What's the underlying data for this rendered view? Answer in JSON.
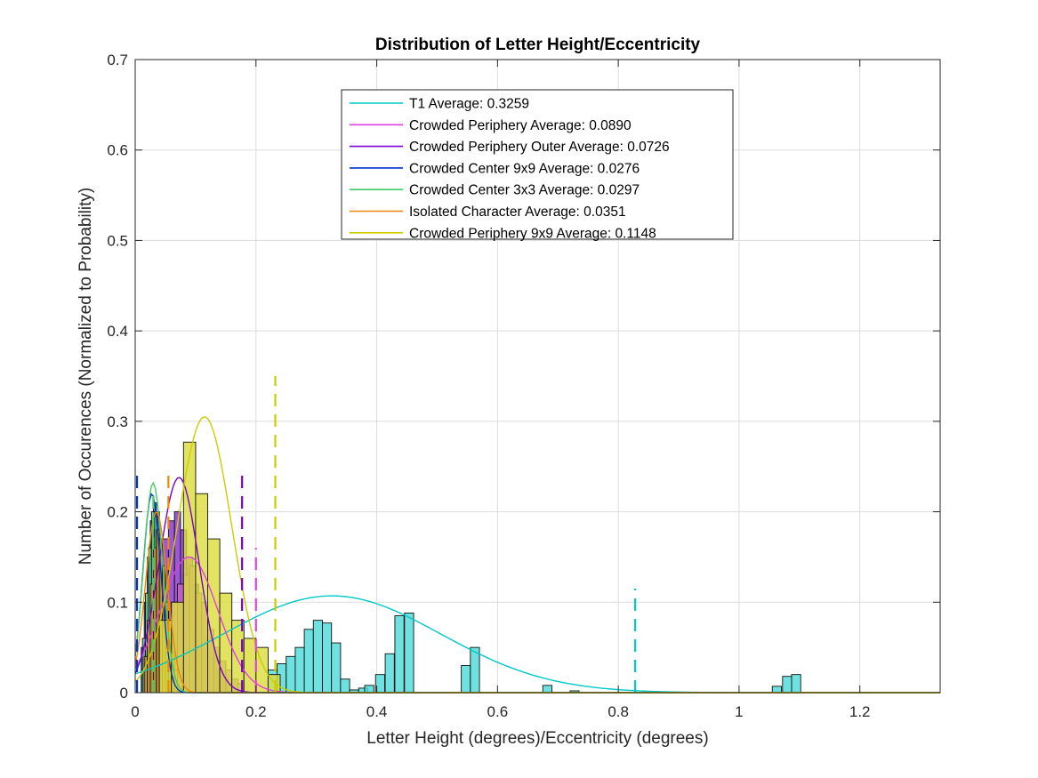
{
  "chart_data": {
    "type": "bar",
    "title": "Distribution of Letter Height/Eccentricity",
    "xlabel": "Letter Height (degrees)/Eccentricity (degrees)",
    "ylabel": "Number of Occurences (Normalized to Probability)",
    "xlim": [
      0,
      1.333
    ],
    "ylim": [
      0,
      0.7
    ],
    "x_ticks": [
      "0",
      "0.2",
      "0.4",
      "0.6",
      "0.8",
      "1",
      "1.2"
    ],
    "y_ticks": [
      "0",
      "0.1",
      "0.2",
      "0.3",
      "0.4",
      "0.5",
      "0.6",
      "0.7"
    ],
    "grid": true,
    "legend_position": "top-center",
    "series": [
      {
        "name": "T1 Average: 0.3259",
        "color": "#00c8c8",
        "bar_fill": "#4fdada",
        "mean": 0.3259,
        "mean_line_x": 0.828,
        "mean_line_height": 0.115,
        "fit_peak": 0.107,
        "fit_sigma": 0.18,
        "bin_width": 0.0151,
        "bins": [
          [
            0.22,
            0.025
          ],
          [
            0.235,
            0.032
          ],
          [
            0.25,
            0.04
          ],
          [
            0.265,
            0.05
          ],
          [
            0.28,
            0.07
          ],
          [
            0.295,
            0.08
          ],
          [
            0.31,
            0.077
          ],
          [
            0.325,
            0.055
          ],
          [
            0.34,
            0.015
          ],
          [
            0.355,
            0.003
          ],
          [
            0.37,
            0.005
          ],
          [
            0.38,
            0.008
          ],
          [
            0.398,
            0.02
          ],
          [
            0.414,
            0.043
          ],
          [
            0.43,
            0.085
          ],
          [
            0.446,
            0.088
          ],
          [
            0.54,
            0.03
          ],
          [
            0.555,
            0.05
          ],
          [
            0.675,
            0.008
          ],
          [
            0.72,
            0.002
          ],
          [
            1.055,
            0.007
          ],
          [
            1.072,
            0.018
          ],
          [
            1.087,
            0.02
          ]
        ]
      },
      {
        "name": "Crowded Periphery Average: 0.0890",
        "color": "#e040e0",
        "bar_fill": "#cc66cc",
        "mean": 0.089,
        "mean_line_x": 0.2,
        "mean_line_height": 0.16,
        "fit_peak": 0.15,
        "fit_sigma": 0.048,
        "bin_width": 0.0101,
        "bins": [
          [
            0.04,
            0.05
          ],
          [
            0.05,
            0.08
          ],
          [
            0.06,
            0.1
          ],
          [
            0.07,
            0.12
          ],
          [
            0.08,
            0.13
          ],
          [
            0.09,
            0.14
          ],
          [
            0.1,
            0.11
          ],
          [
            0.11,
            0.1
          ],
          [
            0.12,
            0.07
          ],
          [
            0.13,
            0.05
          ],
          [
            0.14,
            0.035
          ],
          [
            0.15,
            0.025
          ],
          [
            0.16,
            0.015
          ],
          [
            0.17,
            0.01
          ]
        ]
      },
      {
        "name": "Crowded Periphery Outer Average: 0.0726",
        "color": "#7a00d4",
        "bar_fill": "#8833cc",
        "mean": 0.0726,
        "mean_line_x": 0.177,
        "mean_line_height": 0.245,
        "fit_peak": 0.238,
        "fit_sigma": 0.033,
        "bin_width": 0.0101,
        "bins": [
          [
            0.035,
            0.12
          ],
          [
            0.045,
            0.17
          ],
          [
            0.055,
            0.19
          ],
          [
            0.065,
            0.2
          ],
          [
            0.075,
            0.18
          ],
          [
            0.085,
            0.15
          ],
          [
            0.095,
            0.12
          ],
          [
            0.105,
            0.09
          ],
          [
            0.115,
            0.06
          ],
          [
            0.125,
            0.04
          ],
          [
            0.135,
            0.025
          ],
          [
            0.145,
            0.015
          ],
          [
            0.155,
            0.008
          ]
        ]
      },
      {
        "name": "Crowded Center 9x9 Average: 0.0276",
        "color": "#0033cc",
        "bar_fill": "#3355cc",
        "mean": 0.0276,
        "mean_line_x": 0.003,
        "mean_line_height": 0.24,
        "fit_peak": 0.22,
        "fit_sigma": 0.015,
        "bin_width": 0.0051,
        "bins": [
          [
            0.01,
            0.05
          ],
          [
            0.015,
            0.1
          ],
          [
            0.02,
            0.15
          ],
          [
            0.025,
            0.19
          ],
          [
            0.03,
            0.21
          ],
          [
            0.035,
            0.2
          ],
          [
            0.04,
            0.17
          ],
          [
            0.045,
            0.13
          ],
          [
            0.05,
            0.09
          ],
          [
            0.055,
            0.06
          ],
          [
            0.06,
            0.04
          ]
        ]
      },
      {
        "name": "Crowded Center 3x3 Average: 0.0297",
        "color": "#44cc66",
        "bar_fill": "#66cc88",
        "mean": 0.0297,
        "mean_line_x": 0.03,
        "mean_line_height": 0.22,
        "fit_peak": 0.232,
        "fit_sigma": 0.016,
        "bin_width": 0.0051,
        "bins": [
          [
            0.012,
            0.06
          ],
          [
            0.017,
            0.11
          ],
          [
            0.022,
            0.16
          ],
          [
            0.027,
            0.2
          ],
          [
            0.032,
            0.195
          ],
          [
            0.037,
            0.17
          ],
          [
            0.042,
            0.13
          ],
          [
            0.047,
            0.09
          ],
          [
            0.052,
            0.06
          ],
          [
            0.057,
            0.04
          ]
        ]
      },
      {
        "name": "Isolated Character Average: 0.0351",
        "color": "#ee8800",
        "bar_fill": "#dd9933",
        "mean": 0.0351,
        "mean_line_x": 0.055,
        "mean_line_height": 0.24,
        "fit_peak": 0.2,
        "fit_sigma": 0.018,
        "bin_width": 0.0051,
        "bins": [
          [
            0.015,
            0.04
          ],
          [
            0.02,
            0.08
          ],
          [
            0.025,
            0.12
          ],
          [
            0.03,
            0.16
          ],
          [
            0.035,
            0.18
          ],
          [
            0.04,
            0.17
          ],
          [
            0.045,
            0.14
          ],
          [
            0.05,
            0.1
          ],
          [
            0.055,
            0.07
          ],
          [
            0.06,
            0.045
          ],
          [
            0.065,
            0.025
          ]
        ]
      },
      {
        "name": "Crowded Periphery 9x9 Average: 0.1148",
        "color": "#cccc00",
        "bar_fill": "#dddd40",
        "mean": 0.1148,
        "mean_line_x": 0.232,
        "mean_line_height": 0.35,
        "fit_peak": 0.305,
        "fit_sigma": 0.045,
        "bin_width": 0.0201,
        "bins": [
          [
            0.04,
            0.08
          ],
          [
            0.06,
            0.1
          ],
          [
            0.08,
            0.277
          ],
          [
            0.1,
            0.22
          ],
          [
            0.12,
            0.17
          ],
          [
            0.14,
            0.11
          ],
          [
            0.16,
            0.08
          ],
          [
            0.18,
            0.06
          ],
          [
            0.2,
            0.05
          ],
          [
            0.22,
            0.02
          ]
        ]
      }
    ]
  }
}
